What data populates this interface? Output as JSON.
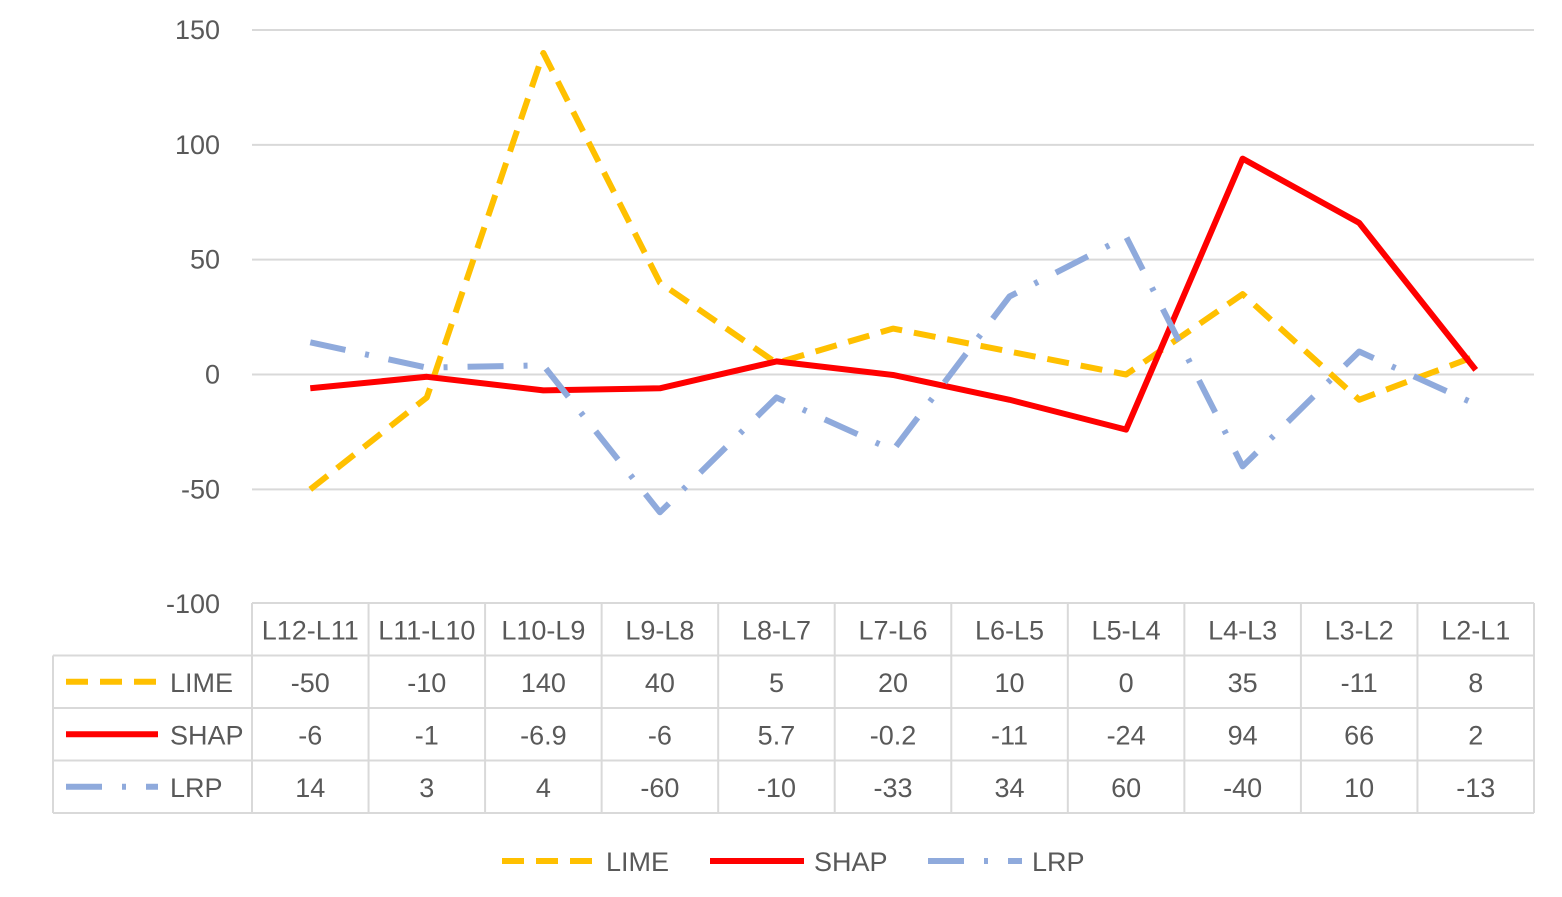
{
  "chart_data": {
    "type": "line",
    "categories": [
      "L12-L11",
      "L11-L10",
      "L10-L9",
      "L9-L8",
      "L8-L7",
      "L7-L6",
      "L6-L5",
      "L5-L4",
      "L4-L3",
      "L3-L2",
      "L2-L1"
    ],
    "series": [
      {
        "name": "LIME",
        "values": [
          -50,
          -10,
          140,
          40,
          5,
          20,
          10,
          0,
          35,
          -11,
          8
        ],
        "color": "#FFC000",
        "dash": "dash"
      },
      {
        "name": "SHAP",
        "values": [
          -6,
          -1,
          -6.9,
          -6,
          5.7,
          -0.2,
          -11,
          -24,
          94,
          66,
          2
        ],
        "color": "#FF0000",
        "dash": "solid"
      },
      {
        "name": "LRP",
        "values": [
          14,
          3,
          4,
          -60,
          -10,
          -33,
          34,
          60,
          -40,
          10,
          -13
        ],
        "color": "#8FAADC",
        "dash": "long-dash-dot"
      }
    ],
    "cell_labels": [
      [
        "-50",
        "-10",
        "140",
        "40",
        "5",
        "20",
        "10",
        "0",
        "35",
        "-11",
        "8"
      ],
      [
        "-6",
        "-1",
        "-6.9",
        "-6",
        "5.7",
        "-0.2",
        "-11",
        "-24",
        "94",
        "66",
        "2"
      ],
      [
        "14",
        "3",
        "4",
        "-60",
        "-10",
        "-33",
        "34",
        "60",
        "-40",
        "10",
        "-13"
      ]
    ],
    "y_ticks": [
      "150",
      "100",
      "50",
      "0",
      "-50",
      "-100"
    ],
    "ylim": [
      -100,
      150
    ],
    "grid": true,
    "legend": "bottom",
    "data_table": true
  }
}
